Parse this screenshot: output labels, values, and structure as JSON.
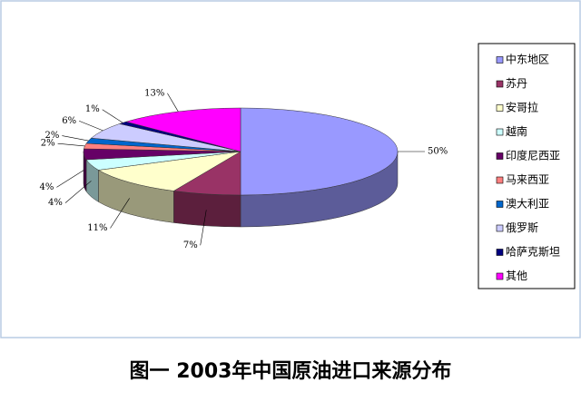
{
  "chart_data": {
    "type": "pie3d",
    "title": "图一  2003年中国原油进口来源分布",
    "categories": [
      "中东地区",
      "苏丹",
      "安哥拉",
      "越南",
      "印度尼西亚",
      "马来西亚",
      "澳大利亚",
      "俄罗斯",
      "哈萨克斯坦",
      "其他"
    ],
    "values": [
      50,
      7,
      11,
      4,
      4,
      2,
      2,
      6,
      1,
      13
    ],
    "value_labels": [
      "50%",
      "7%",
      "11%",
      "4%",
      "4%",
      "2%",
      "2%",
      "6%",
      "1%",
      "13%"
    ],
    "colors": [
      "#9999ff",
      "#993366",
      "#ffffcc",
      "#ccffff",
      "#660066",
      "#ff8080",
      "#0066cc",
      "#ccccff",
      "#000080",
      "#ff00ff"
    ],
    "legend": "right"
  }
}
